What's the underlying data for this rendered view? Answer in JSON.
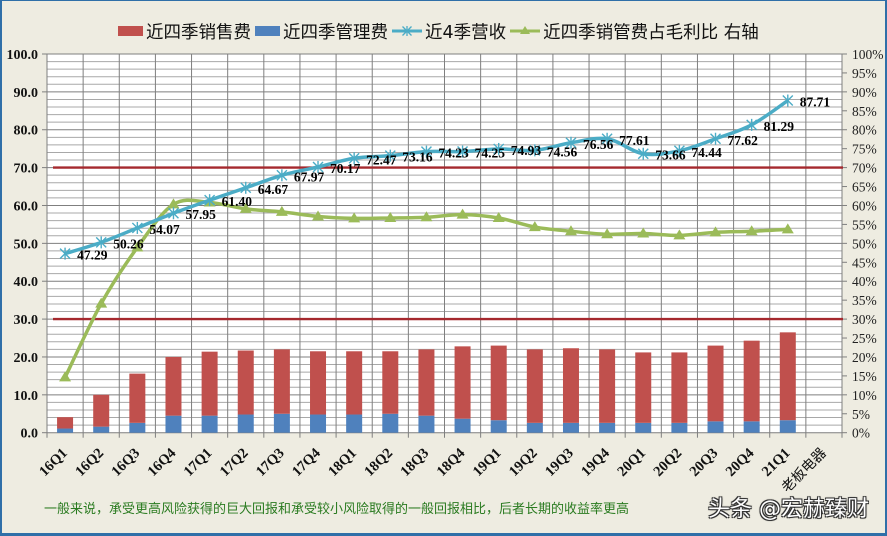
{
  "legend": {
    "items": [
      {
        "label": "近四季销售费",
        "color": "#C0504D",
        "marker": "square"
      },
      {
        "label": "近四季管理费",
        "color": "#4F81BD",
        "marker": "square"
      },
      {
        "label": "近4季营收",
        "color": "#4BACC6",
        "marker": "line-asterisk"
      },
      {
        "label": "近四季销管费占毛利比 右轴",
        "color": "#9BBB59",
        "marker": "line-triangle"
      }
    ]
  },
  "note": "一般来说，承受更高风险获得的巨大回报和承受较小风险取得的一般回报相比，后者长期的收益率更高",
  "watermark": "头条 @宏赫臻财",
  "colors": {
    "background": "#EEECE1",
    "plot_background": "#FFFFFF",
    "gridline": "#8C8C8C",
    "reference_line": "#A5292E",
    "frame": "#2F6FA8",
    "note_text": "#2A7B20"
  },
  "chart_data": {
    "type": "bar",
    "combo": true,
    "title": "",
    "xlabel": "",
    "ylabel": "",
    "legend_position": "top",
    "grid": true,
    "categories": [
      "16Q1",
      "16Q2",
      "16Q3",
      "16Q4",
      "17Q1",
      "17Q2",
      "17Q3",
      "17Q4",
      "18Q1",
      "18Q2",
      "18Q3",
      "18Q4",
      "19Q1",
      "19Q2",
      "19Q3",
      "19Q4",
      "20Q1",
      "20Q2",
      "20Q3",
      "20Q4",
      "21Q1",
      "老板电器"
    ],
    "series": [
      {
        "name": "近四季销售费",
        "chart_type": "bar",
        "stacked": true,
        "axis": "left",
        "color": "#C0504D",
        "values": [
          3.0,
          8.4,
          13.0,
          15.5,
          16.9,
          16.9,
          17.0,
          16.7,
          16.7,
          16.5,
          17.5,
          19.1,
          19.7,
          19.4,
          19.7,
          19.4,
          18.6,
          18.6,
          20.0,
          21.3,
          23.2,
          null
        ]
      },
      {
        "name": "近四季管理费",
        "chart_type": "bar",
        "stacked": true,
        "axis": "left",
        "color": "#4F81BD",
        "values": [
          1.1,
          1.6,
          2.6,
          4.5,
          4.5,
          4.8,
          5.0,
          4.8,
          4.8,
          5.0,
          4.5,
          3.7,
          3.3,
          2.6,
          2.6,
          2.6,
          2.6,
          2.6,
          3.0,
          3.0,
          3.3,
          null
        ]
      },
      {
        "name": "近4季营收",
        "chart_type": "line",
        "axis": "left",
        "color": "#4BACC6",
        "marker": "asterisk",
        "values": [
          47.29,
          50.26,
          54.07,
          57.95,
          61.4,
          64.67,
          67.97,
          70.17,
          72.47,
          73.16,
          74.23,
          74.25,
          74.93,
          74.56,
          76.56,
          77.61,
          73.66,
          74.44,
          77.62,
          81.29,
          87.71,
          null
        ],
        "labels": [
          "47.29",
          "50.26",
          "54.07",
          "57.95",
          "61.40",
          "64.67",
          "67.97",
          "70.17",
          "72.47",
          "73.16",
          "74.23",
          "74.25",
          "74.93",
          "74.56",
          "76.56",
          "77.61",
          "73.66",
          "74.44",
          "77.62",
          "81.29",
          "87.71"
        ]
      },
      {
        "name": "近四季销管费占毛利比",
        "chart_type": "line",
        "axis": "right",
        "unit": "%",
        "color": "#9BBB59",
        "marker": "triangle",
        "values": [
          14.6,
          34.1,
          48.9,
          60.3,
          60.8,
          59.1,
          58.3,
          57.1,
          56.6,
          56.7,
          56.9,
          57.6,
          56.7,
          54.3,
          53.2,
          52.4,
          52.6,
          52.1,
          52.9,
          53.2,
          53.7,
          null
        ]
      }
    ],
    "reference_lines": [
      {
        "axis": "left",
        "value": 70,
        "color": "#A5292E"
      },
      {
        "axis": "left",
        "value": 30,
        "color": "#A5292E"
      }
    ],
    "y_axis": {
      "min": 0,
      "max": 100,
      "major": 10,
      "minor": 2,
      "tick_labels": [
        "0.0",
        "10.0",
        "20.0",
        "30.0",
        "40.0",
        "50.0",
        "60.0",
        "70.0",
        "80.0",
        "90.0",
        "100.0"
      ]
    },
    "y2_axis": {
      "min": 0,
      "max": 100,
      "major": 5,
      "tick_labels": [
        "0%",
        "5%",
        "10%",
        "15%",
        "20%",
        "25%",
        "30%",
        "35%",
        "40%",
        "45%",
        "50%",
        "55%",
        "60%",
        "65%",
        "70%",
        "75%",
        "80%",
        "85%",
        "90%",
        "95%",
        "100%"
      ]
    }
  }
}
